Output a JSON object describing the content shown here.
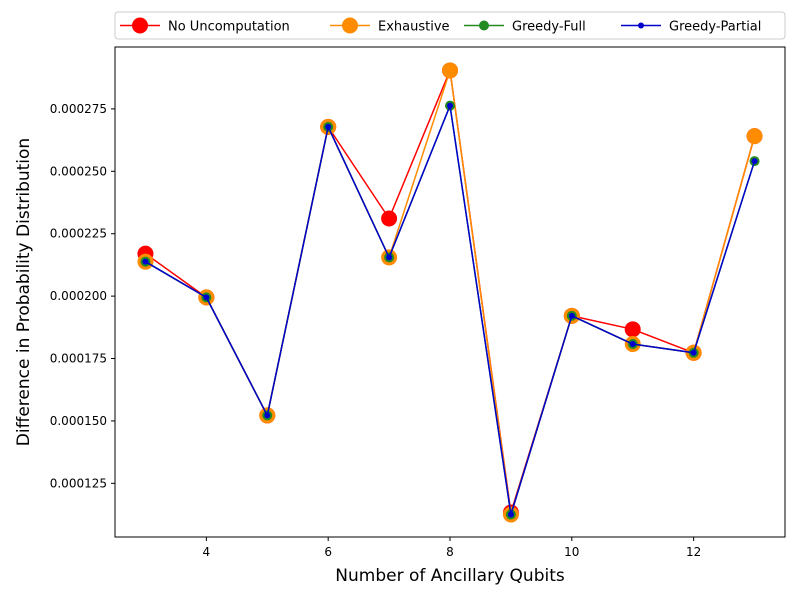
{
  "chart_data": {
    "type": "line",
    "title": "",
    "xlabel": "Number of Ancillary Qubits",
    "ylabel": "Difference in Probability Distribution",
    "x": [
      3,
      4,
      5,
      6,
      7,
      8,
      9,
      10,
      11,
      12,
      13
    ],
    "xlim": [
      2.5,
      13.5
    ],
    "ylim": [
      0.0001035,
      0.0002998
    ],
    "xticks": [
      4,
      6,
      8,
      10,
      12
    ],
    "yticks": [
      0.000125,
      0.00015,
      0.000175,
      0.0002,
      0.000225,
      0.00025,
      0.000275
    ],
    "xtick_labels": [
      "4",
      "6",
      "8",
      "10",
      "12"
    ],
    "ytick_labels": [
      "0.000125",
      "0.000150",
      "0.000175",
      "0.000200",
      "0.000225",
      "0.000250",
      "0.000275"
    ],
    "grid": false,
    "legend_position": "top",
    "series": [
      {
        "name": "No Uncomputation",
        "color": "#ff0000",
        "values": [
          0.000217,
          0.0001995,
          0.0001522,
          0.0002678,
          0.0002311,
          0.0002904,
          0.0001133,
          0.0001921,
          0.0001867,
          0.0001773,
          0.0002641
        ]
      },
      {
        "name": "Exhaustive",
        "color": "#ff8c00",
        "values": [
          0.0002138,
          0.0001995,
          0.0001522,
          0.0002678,
          0.0002155,
          0.0002904,
          0.0001125,
          0.0001921,
          0.0001808,
          0.0001773,
          0.0002641
        ]
      },
      {
        "name": "Greedy-Full",
        "color": "#228b22",
        "values": [
          0.0002138,
          0.0001995,
          0.0001522,
          0.0002678,
          0.0002155,
          0.0002763,
          0.0001125,
          0.0001921,
          0.0001808,
          0.0001773,
          0.0002541
        ]
      },
      {
        "name": "Greedy-Partial",
        "color": "#0000cd",
        "values": [
          0.0002138,
          0.0001995,
          0.0001522,
          0.0002678,
          0.0002155,
          0.0002763,
          0.0001125,
          0.0001921,
          0.0001808,
          0.0001773,
          0.0002541
        ]
      }
    ]
  }
}
